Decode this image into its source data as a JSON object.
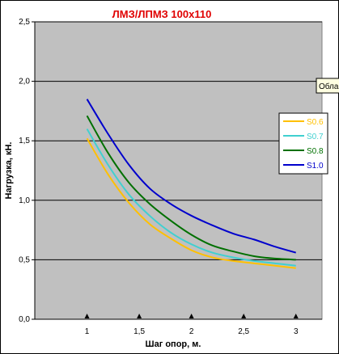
{
  "chart_data": {
    "type": "line",
    "title": "ЛМЗ/ЛПМЗ 100x110",
    "xlabel": "Шаг опор, м.",
    "ylabel": "Нагрузка, кН.",
    "x_ticks": [
      "1",
      "1,5",
      "2",
      "2,5",
      "3"
    ],
    "y_ticks": [
      "0,0",
      "0,5",
      "1,0",
      "1,5",
      "2,0",
      "2,5"
    ],
    "xlim": [
      0.5,
      3.25
    ],
    "ylim": [
      0,
      2.5
    ],
    "grid": "horizontal",
    "legend_position": "right",
    "plot_background": "#c0c0c0",
    "series": [
      {
        "name": "S0.6",
        "color": "#ffc000",
        "x": [
          1,
          1.2,
          1.4,
          1.6,
          1.8,
          2,
          2.2,
          2.4,
          2.6,
          2.8,
          3
        ],
        "y": [
          1.52,
          1.22,
          0.98,
          0.8,
          0.68,
          0.58,
          0.52,
          0.49,
          0.47,
          0.45,
          0.43
        ]
      },
      {
        "name": "S0.7",
        "color": "#40d0d0",
        "x": [
          1,
          1.2,
          1.4,
          1.6,
          1.8,
          2,
          2.2,
          2.4,
          2.6,
          2.8,
          3
        ],
        "y": [
          1.6,
          1.3,
          1.05,
          0.87,
          0.73,
          0.63,
          0.56,
          0.52,
          0.49,
          0.47,
          0.45
        ]
      },
      {
        "name": "S0.8",
        "color": "#007000",
        "x": [
          1,
          1.2,
          1.4,
          1.6,
          1.8,
          2,
          2.2,
          2.4,
          2.6,
          2.8,
          3
        ],
        "y": [
          1.71,
          1.4,
          1.15,
          0.97,
          0.83,
          0.71,
          0.62,
          0.57,
          0.53,
          0.51,
          0.5
        ]
      },
      {
        "name": "S1.0",
        "color": "#0000cc",
        "x": [
          1,
          1.2,
          1.4,
          1.6,
          1.8,
          2,
          2.2,
          2.4,
          2.6,
          2.8,
          3
        ],
        "y": [
          1.85,
          1.56,
          1.3,
          1.1,
          0.97,
          0.87,
          0.79,
          0.72,
          0.67,
          0.61,
          0.56
        ]
      }
    ]
  },
  "tooltip": {
    "text": "Обла"
  }
}
